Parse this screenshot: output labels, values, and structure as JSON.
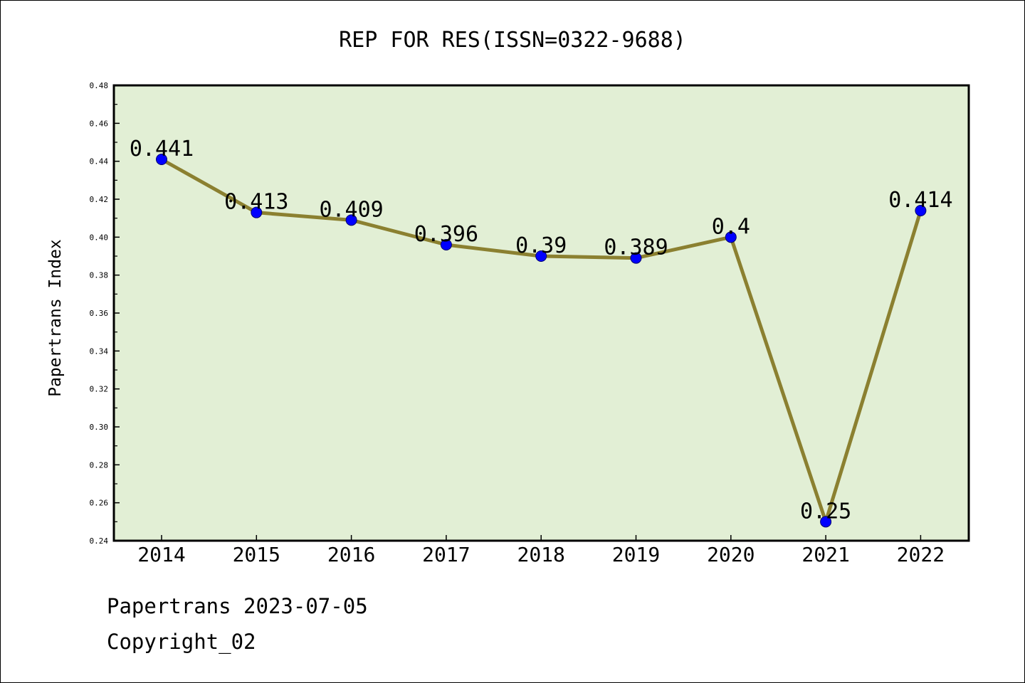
{
  "chart_data": {
    "type": "line",
    "title": "REP FOR RES(ISSN=0322-9688)",
    "xlabel": "",
    "ylabel": "Papertrans Index",
    "categories": [
      "2014",
      "2015",
      "2016",
      "2017",
      "2018",
      "2019",
      "2020",
      "2021",
      "2022"
    ],
    "values": [
      0.441,
      0.413,
      0.409,
      0.396,
      0.39,
      0.389,
      0.4,
      0.25,
      0.414
    ],
    "data_labels": [
      "0.441",
      "0.413",
      "0.409",
      "0.396",
      "0.39",
      "0.389",
      "0.4",
      "0.25",
      "0.414"
    ],
    "ylim": [
      0.24,
      0.48
    ],
    "yticks": [
      "0.24",
      "0.26",
      "0.28",
      "0.30",
      "0.32",
      "0.34",
      "0.36",
      "0.38",
      "0.40",
      "0.42",
      "0.44",
      "0.46",
      "0.48"
    ],
    "grid": false,
    "legend": "none",
    "colors": {
      "plot_background": "#e2efd5",
      "line": "#8b8030",
      "marker": "#0000ff",
      "axes": "#000000"
    }
  },
  "footer": {
    "source": "Papertrans 2023-07-05",
    "copyright": "Copyright_02"
  }
}
